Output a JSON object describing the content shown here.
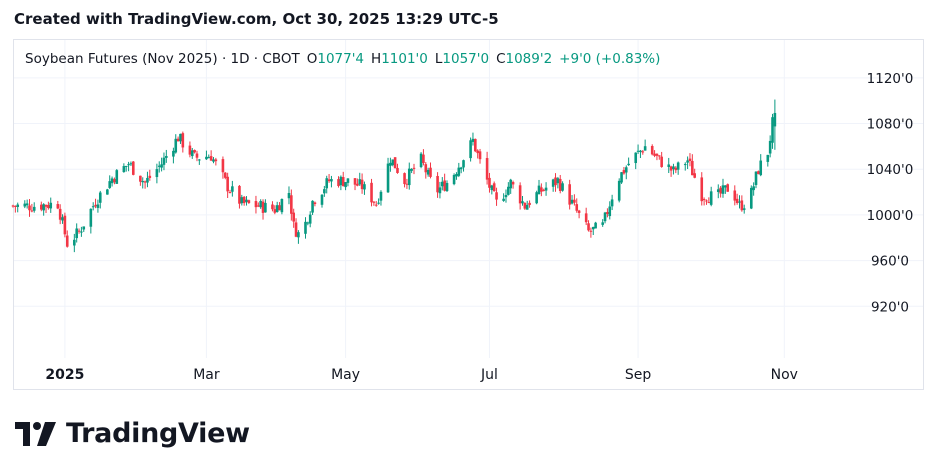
{
  "header": {
    "created_text": "Created with TradingView.com, Oct 30, 2025 13:29 UTC-5"
  },
  "legend": {
    "symbol": "Soybean Futures (Nov 2025) · 1D · CBOT",
    "o_label": "O",
    "o_value": "1077'4",
    "h_label": "H",
    "h_value": "1101'0",
    "l_label": "L",
    "l_value": "1057'0",
    "c_label": "C",
    "c_value": "1089'2",
    "change": "+9'0 (+0.83%)"
  },
  "brand": {
    "name": "TradingView",
    "logo_icon": "tradingview-logo-icon"
  },
  "colors": {
    "up": "#089981",
    "down": "#f23645",
    "up_text": "#22ab94",
    "grid": "#f0f3fa",
    "text": "#131722"
  },
  "chart_data": {
    "type": "candlestick",
    "title": "Soybean Futures (Nov 2025) · 1D · CBOT",
    "ylim": [
      880,
      1140
    ],
    "y_ticks": [
      {
        "value": 920,
        "label": "920'0"
      },
      {
        "value": 960,
        "label": "960'0"
      },
      {
        "value": 1000,
        "label": "1000'0"
      },
      {
        "value": 1040,
        "label": "1040'0"
      },
      {
        "value": 1080,
        "label": "1080'0"
      },
      {
        "value": 1120,
        "label": "1120'0"
      }
    ],
    "x_ticks": [
      {
        "date": "2025-01-02",
        "label": "2025",
        "bold": true
      },
      {
        "date": "2025-03-03",
        "label": "Mar",
        "bold": false
      },
      {
        "date": "2025-05-01",
        "label": "May",
        "bold": false
      },
      {
        "date": "2025-07-01",
        "label": "Jul",
        "bold": false
      },
      {
        "date": "2025-09-02",
        "label": "Sep",
        "bold": false
      },
      {
        "date": "2025-11-03",
        "label": "Nov",
        "bold": false
      }
    ],
    "x_range": [
      "2024-12-11",
      "2025-11-30"
    ],
    "grid": true,
    "last_bar": {
      "date": "2025-10-30",
      "open": 1077.5,
      "high": 1101,
      "low": 1057,
      "close": 1089.25
    },
    "close_path": [
      [
        "2024-12-11",
        1008
      ],
      [
        "2024-12-20",
        1008
      ],
      [
        "2024-12-30",
        1010
      ],
      [
        "2025-01-03",
        975
      ],
      [
        "2025-01-08",
        985
      ],
      [
        "2025-01-15",
        1012
      ],
      [
        "2025-01-22",
        1032
      ],
      [
        "2025-01-29",
        1045
      ],
      [
        "2025-02-05",
        1028
      ],
      [
        "2025-02-12",
        1045
      ],
      [
        "2025-02-19",
        1068
      ],
      [
        "2025-02-26",
        1050
      ],
      [
        "2025-03-05",
        1052
      ],
      [
        "2025-03-12",
        1025
      ],
      [
        "2025-03-18",
        1010
      ],
      [
        "2025-03-25",
        1008
      ],
      [
        "2025-04-01",
        1005
      ],
      [
        "2025-04-07",
        1020
      ],
      [
        "2025-04-09",
        990
      ],
      [
        "2025-04-12",
        980
      ],
      [
        "2025-04-17",
        1012
      ],
      [
        "2025-04-24",
        1030
      ],
      [
        "2025-05-01",
        1030
      ],
      [
        "2025-05-08",
        1025
      ],
      [
        "2025-05-14",
        1010
      ],
      [
        "2025-05-20",
        1050
      ],
      [
        "2025-05-26",
        1030
      ],
      [
        "2025-06-02",
        1048
      ],
      [
        "2025-06-08",
        1020
      ],
      [
        "2025-06-14",
        1030
      ],
      [
        "2025-06-20",
        1050
      ],
      [
        "2025-06-24",
        1065
      ],
      [
        "2025-06-28",
        1040
      ],
      [
        "2025-07-04",
        1010
      ],
      [
        "2025-07-10",
        1028
      ],
      [
        "2025-07-16",
        1008
      ],
      [
        "2025-07-22",
        1020
      ],
      [
        "2025-07-30",
        1030
      ],
      [
        "2025-08-05",
        1010
      ],
      [
        "2025-08-12",
        985
      ],
      [
        "2025-08-18",
        990
      ],
      [
        "2025-08-24",
        1030
      ],
      [
        "2025-08-30",
        1048
      ],
      [
        "2025-09-05",
        1060
      ],
      [
        "2025-09-11",
        1048
      ],
      [
        "2025-09-17",
        1038
      ],
      [
        "2025-09-23",
        1048
      ],
      [
        "2025-09-29",
        1018
      ],
      [
        "2025-10-05",
        1015
      ],
      [
        "2025-10-11",
        1025
      ],
      [
        "2025-10-15",
        1008
      ],
      [
        "2025-10-19",
        1012
      ],
      [
        "2025-10-23",
        1040
      ],
      [
        "2025-10-27",
        1055
      ],
      [
        "2025-10-29",
        1080
      ]
    ]
  }
}
